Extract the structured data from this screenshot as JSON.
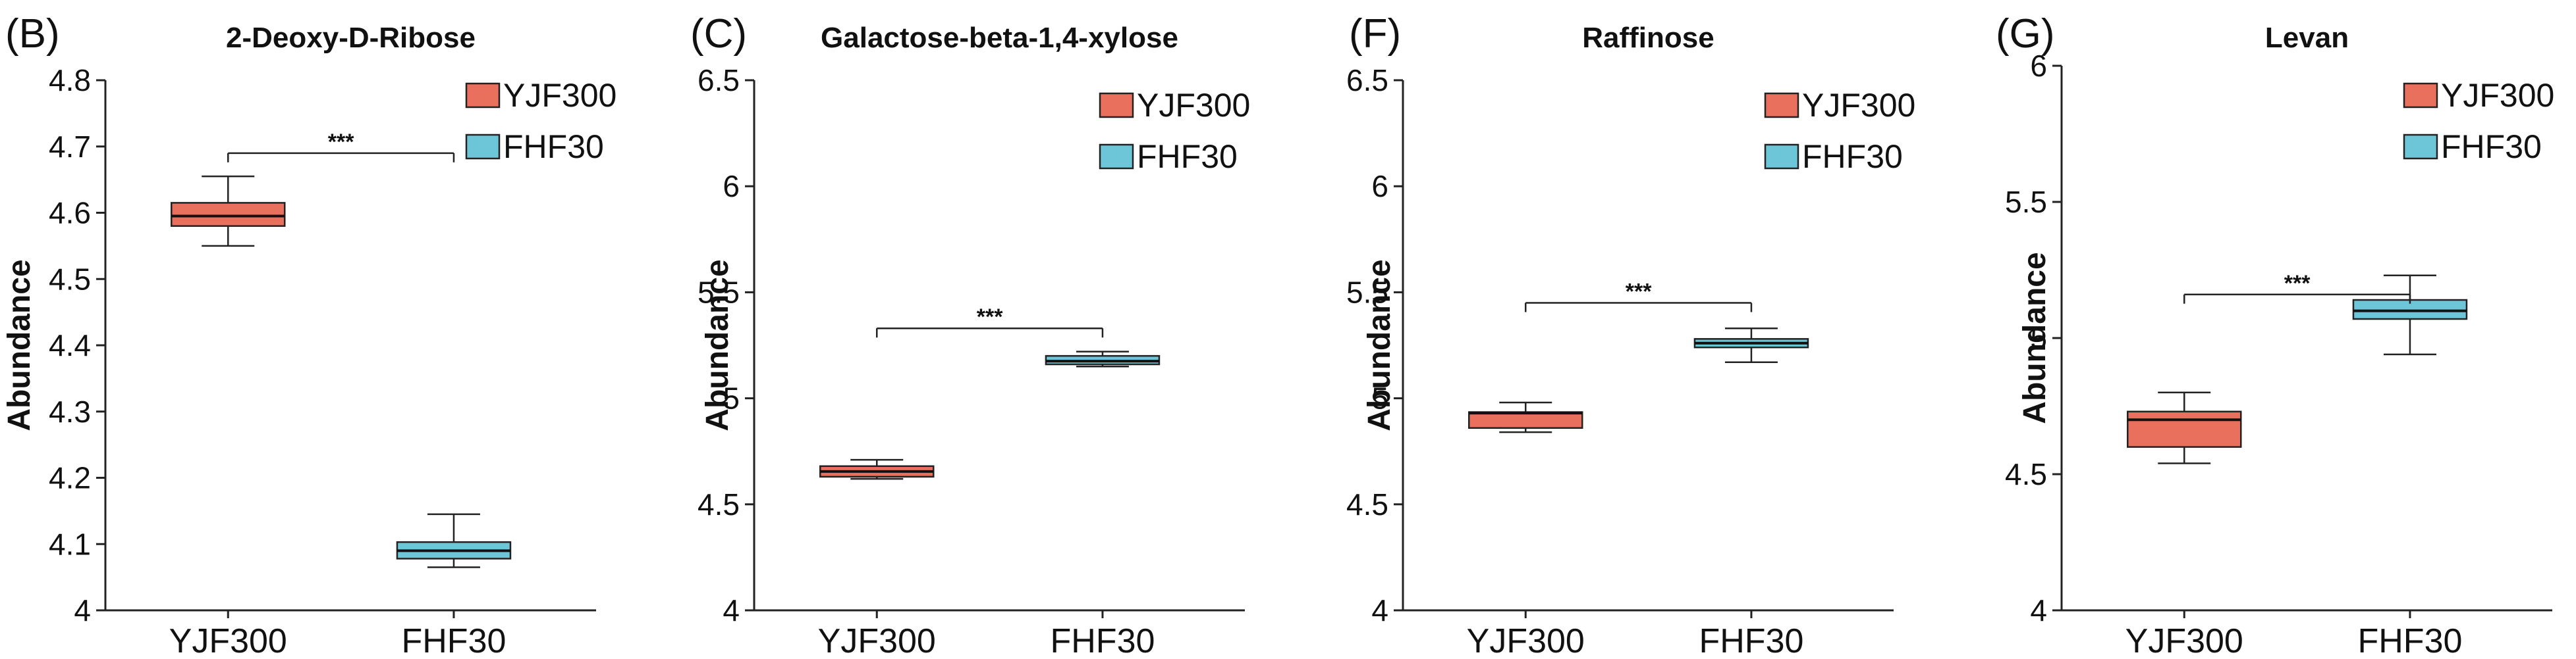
{
  "colors": {
    "YJF300": "#e8705d",
    "FHF30": "#6cc6d8",
    "line": "#222222"
  },
  "legend": [
    "YJF300",
    "FHF30"
  ],
  "ylabel": "Abundance",
  "chart_data": [
    {
      "type": "box",
      "panel": "(B)",
      "title": "2-Deoxy-D-Ribose",
      "ylabel": "Abundance",
      "categories": [
        "YJF300",
        "FHF30"
      ],
      "ylim": [
        4,
        4.8
      ],
      "yticks": [
        4,
        4.1,
        4.2,
        4.3,
        4.4,
        4.5,
        4.6,
        4.7,
        4.8
      ],
      "ytick_labels": [
        "4",
        "4.1",
        "4.2",
        "4.3",
        "4.4",
        "4.5",
        "4.6",
        "4.7",
        "4.8"
      ],
      "boxes": [
        {
          "name": "YJF300",
          "whisker_low": 4.55,
          "q1": 4.58,
          "median": 4.595,
          "q3": 4.615,
          "whisker_high": 4.655
        },
        {
          "name": "FHF30",
          "whisker_low": 4.065,
          "q1": 4.078,
          "median": 4.09,
          "q3": 4.103,
          "whisker_high": 4.145
        }
      ],
      "significance": {
        "label": "***",
        "y": 4.69
      },
      "legend_position": "top-right"
    },
    {
      "type": "box",
      "panel": "(C)",
      "title": "Galactose-beta-1,4-xylose",
      "ylabel": "Abundance",
      "categories": [
        "YJF300",
        "FHF30"
      ],
      "ylim": [
        4,
        6.5
      ],
      "yticks": [
        4,
        4.5,
        5,
        5.5,
        6,
        6.5
      ],
      "ytick_labels": [
        "4",
        "4.5",
        "5",
        "5.5",
        "6",
        "6.5"
      ],
      "boxes": [
        {
          "name": "YJF300",
          "whisker_low": 4.62,
          "q1": 4.63,
          "median": 4.655,
          "q3": 4.68,
          "whisker_high": 4.71
        },
        {
          "name": "FHF30",
          "whisker_low": 5.15,
          "q1": 5.16,
          "median": 5.175,
          "q3": 5.2,
          "whisker_high": 5.22
        }
      ],
      "significance": {
        "label": "***",
        "y": 5.33
      },
      "legend_position": "top-right"
    },
    {
      "type": "box",
      "panel": "(F)",
      "title": "Raffinose",
      "ylabel": "Abundance",
      "categories": [
        "YJF300",
        "FHF30"
      ],
      "ylim": [
        4,
        6.5
      ],
      "yticks": [
        4,
        4.5,
        5,
        5.5,
        6,
        6.5
      ],
      "ytick_labels": [
        "4",
        "4.5",
        "5",
        "5.5",
        "6",
        "6.5"
      ],
      "boxes": [
        {
          "name": "YJF300",
          "whisker_low": 4.84,
          "q1": 4.86,
          "median": 4.93,
          "q3": 4.935,
          "whisker_high": 4.98
        },
        {
          "name": "FHF30",
          "whisker_low": 5.17,
          "q1": 5.24,
          "median": 5.26,
          "q3": 5.28,
          "whisker_high": 5.33
        }
      ],
      "significance": {
        "label": "***",
        "y": 5.45
      },
      "legend_position": "top-right"
    },
    {
      "type": "box",
      "panel": "(G)",
      "title": "Levan",
      "ylabel": "Abundance",
      "categories": [
        "YJF300",
        "FHF30"
      ],
      "ylim": [
        4,
        6
      ],
      "yticks": [
        4,
        4.5,
        5,
        5.5,
        6
      ],
      "ytick_labels": [
        "4",
        "4.5",
        "5",
        "5.5",
        "6"
      ],
      "boxes": [
        {
          "name": "YJF300",
          "whisker_low": 4.54,
          "q1": 4.6,
          "median": 4.7,
          "q3": 4.73,
          "whisker_high": 4.8
        },
        {
          "name": "FHF30",
          "whisker_low": 4.94,
          "q1": 5.07,
          "median": 5.1,
          "q3": 5.14,
          "whisker_high": 5.23
        }
      ],
      "significance": {
        "label": "***",
        "y": 5.16
      },
      "legend_position": "top-right"
    }
  ]
}
